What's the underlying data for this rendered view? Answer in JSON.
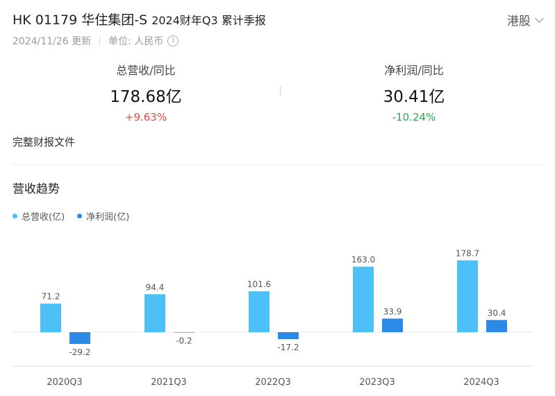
{
  "header": {
    "title": "HK 01179 华住集团-S",
    "subtitle": "2024财年Q3 累计季报",
    "market": "港股"
  },
  "meta": {
    "date": "2024/11/26 更新",
    "unit": "单位: 人民币",
    "info_icon": "info-icon"
  },
  "metrics": {
    "revenue": {
      "label": "总营收/同比",
      "value": "178.68亿",
      "change": "+9.63%",
      "change_color": "#e5483d"
    },
    "profit": {
      "label": "净利润/同比",
      "value": "30.41亿",
      "change": "-10.24%",
      "change_color": "#2aa84f"
    }
  },
  "links": {
    "full_report": "完整财报文件"
  },
  "section": {
    "title": "营收趋势"
  },
  "colors": {
    "revenue": "#4cc0f7",
    "profit": "#2b8ae6"
  },
  "chart_data": {
    "type": "bar",
    "categories": [
      "2020Q3",
      "2021Q3",
      "2022Q3",
      "2023Q3",
      "2024Q3"
    ],
    "series": [
      {
        "name": "总营收(亿)",
        "values": [
          71.2,
          94.4,
          101.6,
          163.0,
          178.7
        ],
        "labels": [
          "71.2",
          "94.4",
          "101.6",
          "163.0",
          "178.7"
        ]
      },
      {
        "name": "净利润(亿)",
        "values": [
          -29.2,
          -0.2,
          -17.2,
          33.9,
          30.4
        ],
        "labels": [
          "-29.2",
          "-0.2",
          "-17.2",
          "33.9",
          "30.4"
        ]
      }
    ],
    "legend_position": "top-left",
    "grid": false
  }
}
